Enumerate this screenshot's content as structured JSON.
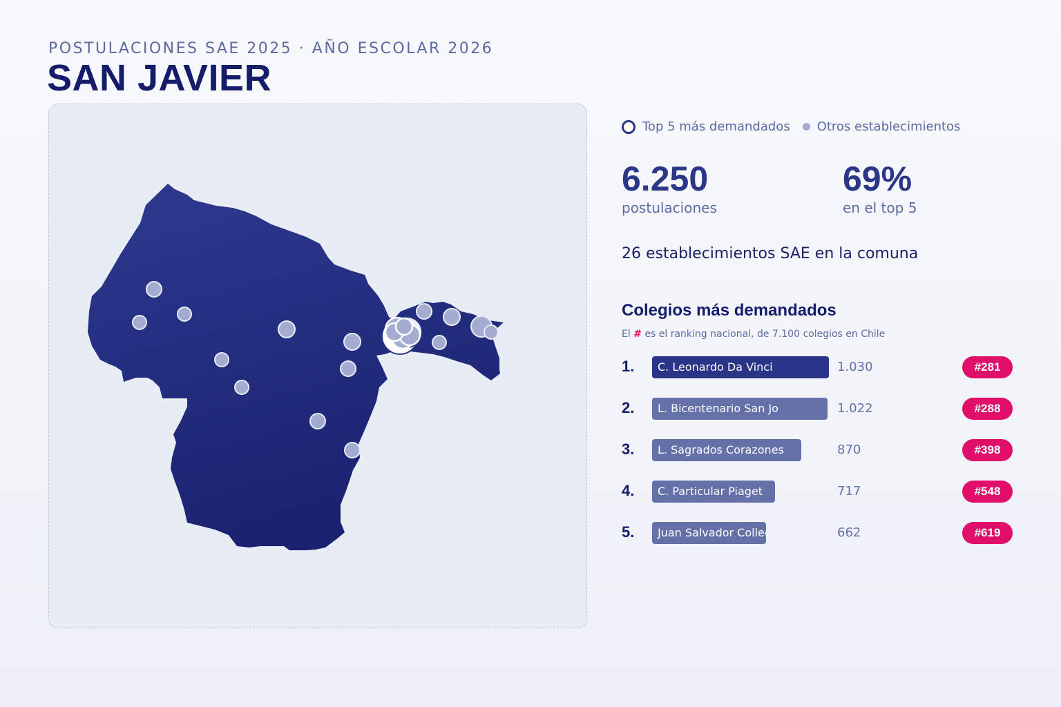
{
  "header": {
    "eyebrow": "POSTULACIONES SAE 2025 · AÑO ESCOLAR 2026",
    "title": "SAN JAVIER"
  },
  "legend": {
    "top5_label": "Top 5 más demandados",
    "others_label": "Otros establecimientos"
  },
  "stats": {
    "applications_value": "6.250",
    "applications_label": "postulaciones",
    "top5_share_value": "69%",
    "top5_share_label": "en el top 5",
    "schools_line": "26 establecimientos SAE en la comuna"
  },
  "ranking": {
    "title": "Colegios más demandados",
    "note_prefix": "El",
    "note_hash": "#",
    "note_suffix": "es el ranking nacional, de 7.100 colegios en Chile",
    "max_value": 1030,
    "items": [
      {
        "pos": "1.",
        "name": "C. Leonardo Da Vinci",
        "value": 1030,
        "value_label": "1.030",
        "national_rank": "#281"
      },
      {
        "pos": "2.",
        "name": "L. Bicentenario San Jo",
        "value": 1022,
        "value_label": "1.022",
        "national_rank": "#288"
      },
      {
        "pos": "3.",
        "name": "L. Sagrados Corazones",
        "value": 870,
        "value_label": "870",
        "national_rank": "#398"
      },
      {
        "pos": "4.",
        "name": "C. Particular Piaget",
        "value": 717,
        "value_label": "717",
        "national_rank": "#548"
      },
      {
        "pos": "5.",
        "name": "Juan Salvador College",
        "value": 662,
        "value_label": "662",
        "national_rank": "#619"
      }
    ]
  },
  "colors": {
    "map_fill_top": "#2e3a8f",
    "map_fill_bottom": "#1a2270",
    "dot_fill": "#a4acd1",
    "accent": "#e0106a",
    "bar_primary": "#2a3587",
    "bar_secondary": "#6470a8"
  }
}
